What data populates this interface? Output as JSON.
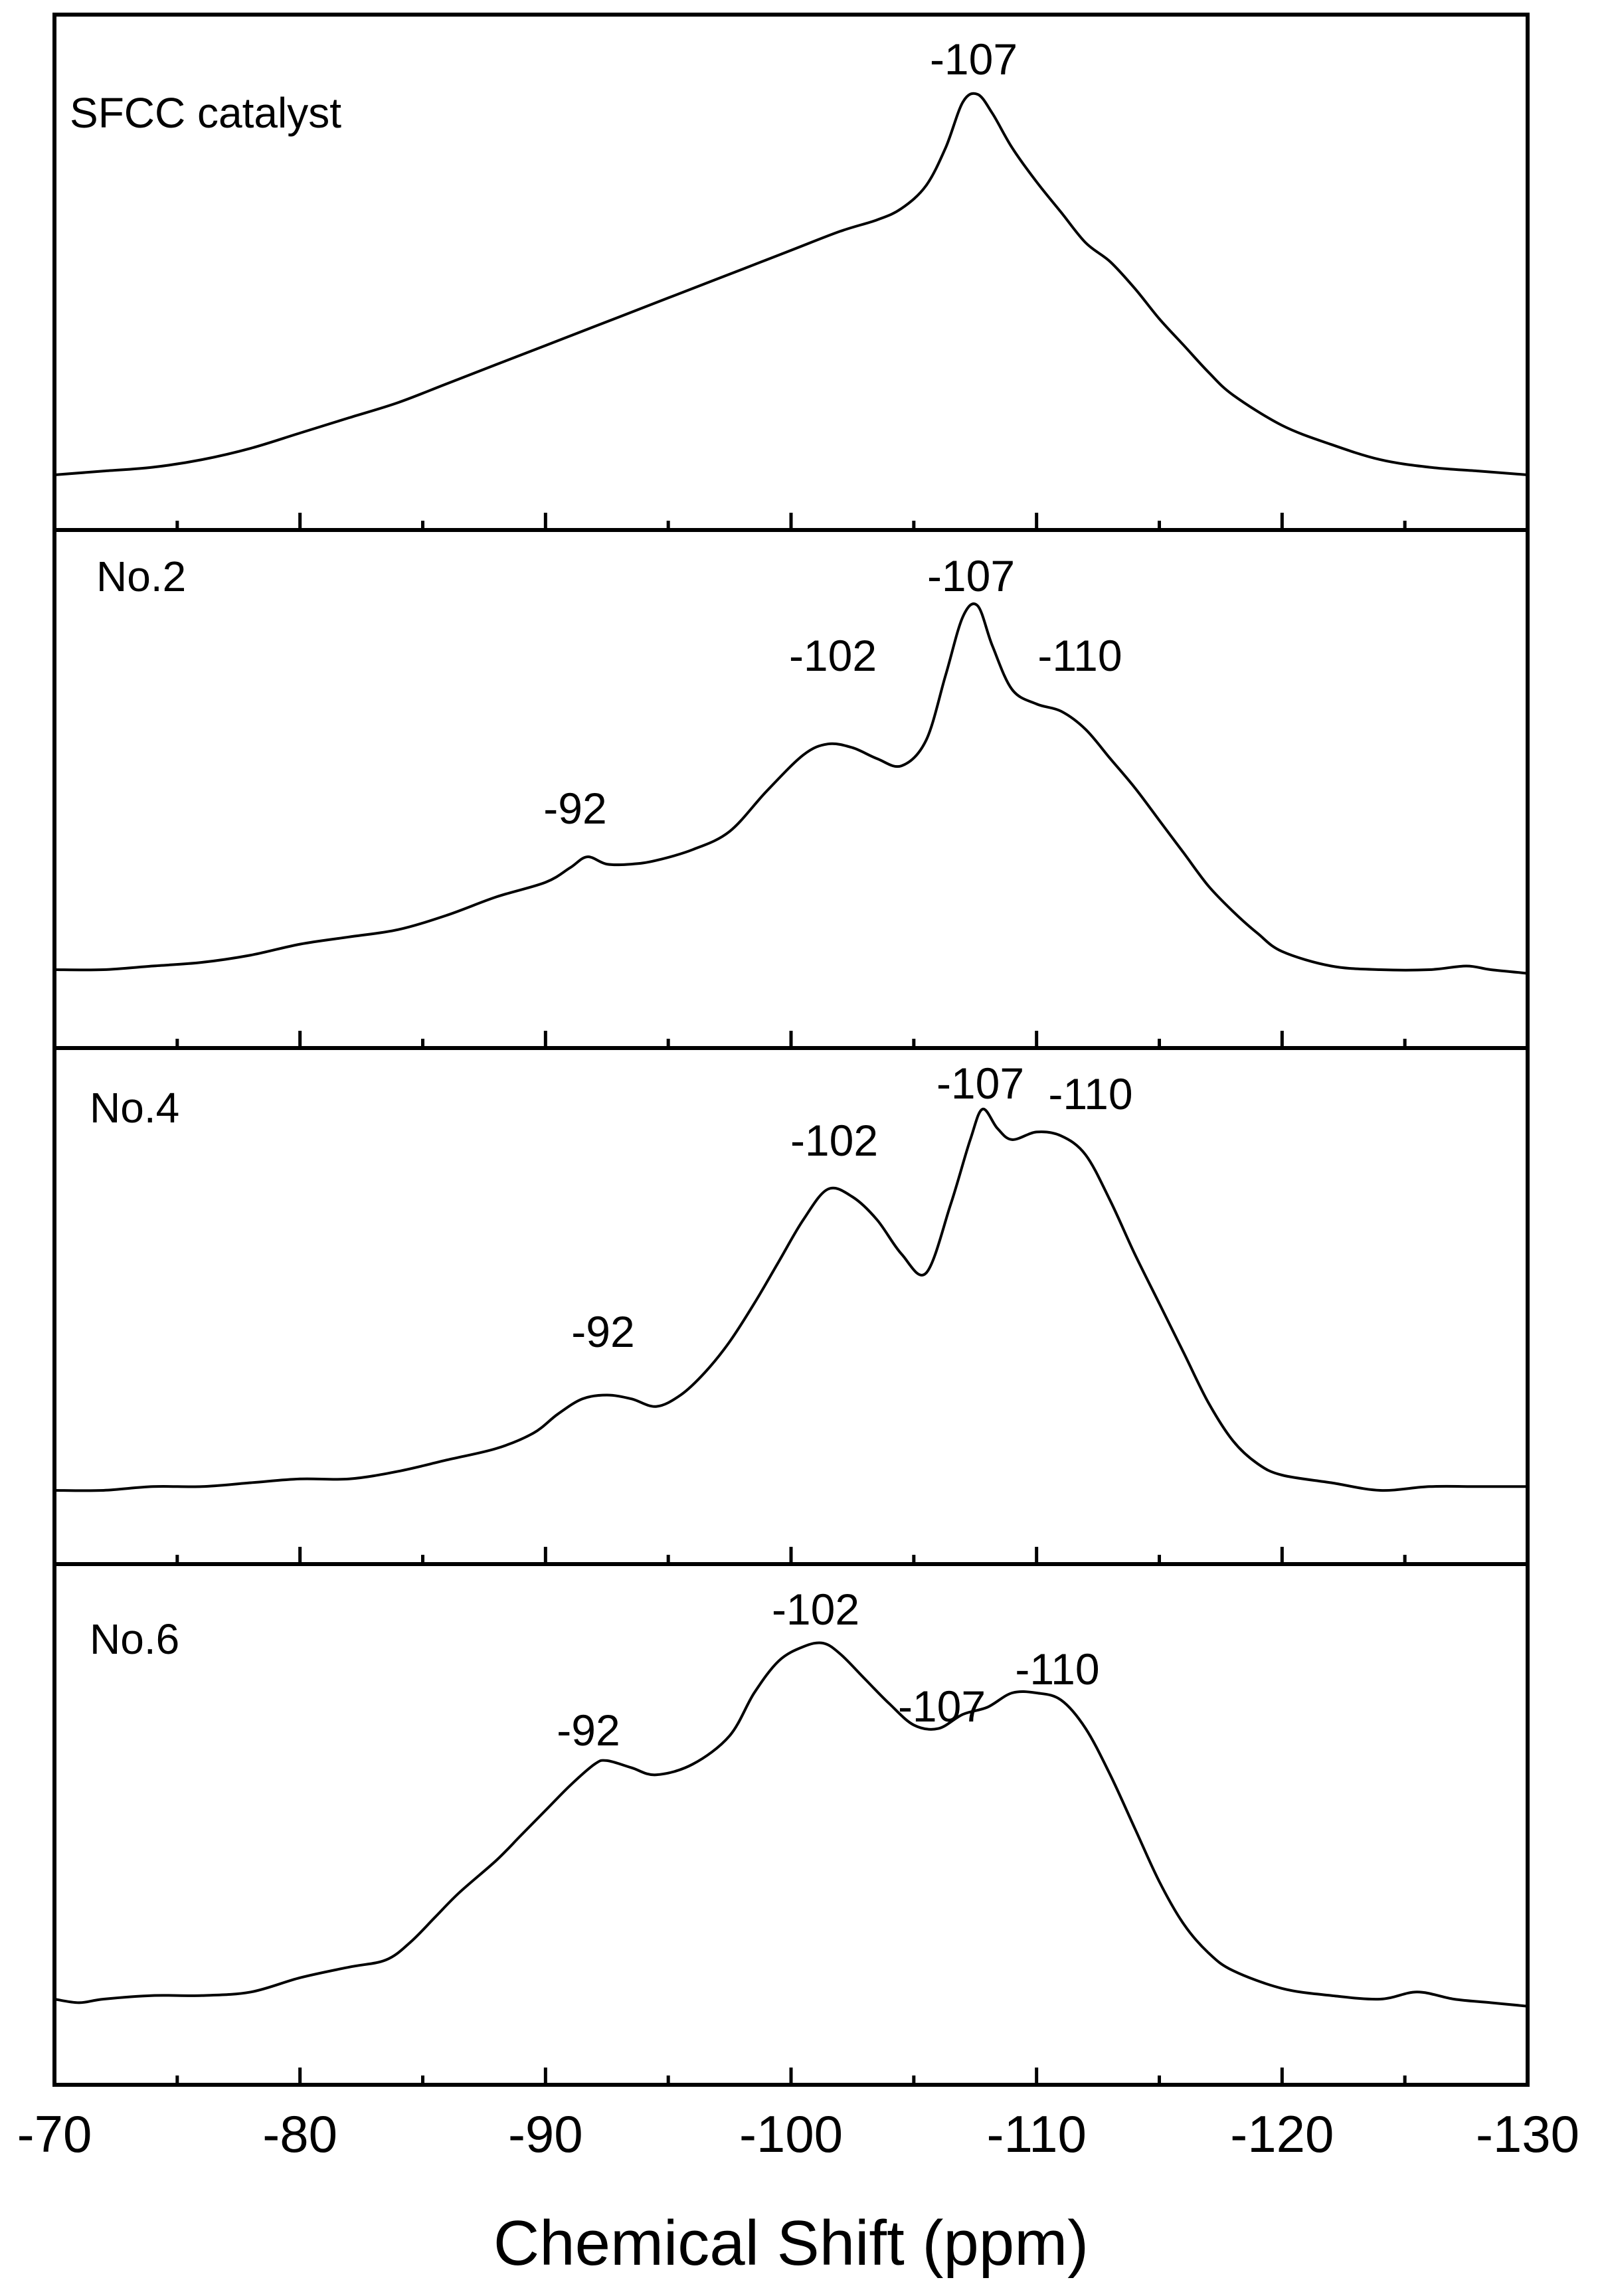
{
  "chart_data": {
    "type": "line",
    "xlabel": "Chemical Shift (ppm)",
    "ylabel": "",
    "xlim": [
      -70,
      -130
    ],
    "x_axis_reversed": true,
    "xticks": [
      -70,
      -80,
      -90,
      -100,
      -110,
      -120,
      -130
    ],
    "xtick_labels": [
      "-70",
      "-80",
      "-90",
      "-100",
      "-110",
      "-120",
      "-130"
    ],
    "minor_tick_step": 5,
    "grid": false,
    "legend": "none",
    "stacked_panels": true,
    "y_axis_shown": false,
    "line_color": "#000000",
    "series": [
      {
        "name": "SFCC catalyst",
        "x": [
          -70,
          -72,
          -74,
          -76,
          -78,
          -80,
          -82,
          -84,
          -86,
          -88,
          -90,
          -92,
          -94,
          -96,
          -98,
          -100,
          -102,
          -103.5,
          -104.5,
          -105.5,
          -106.3,
          -107,
          -107.6,
          -108.2,
          -109,
          -110,
          -111,
          -112,
          -113,
          -114,
          -115,
          -116,
          -117,
          -118,
          -120,
          -122,
          -124,
          -126,
          -128,
          -130
        ],
        "y": [
          0.0,
          0.01,
          0.02,
          0.04,
          0.07,
          0.11,
          0.15,
          0.19,
          0.24,
          0.29,
          0.34,
          0.39,
          0.44,
          0.49,
          0.54,
          0.59,
          0.64,
          0.67,
          0.7,
          0.76,
          0.86,
          0.98,
          1.0,
          0.95,
          0.86,
          0.77,
          0.69,
          0.61,
          0.56,
          0.49,
          0.41,
          0.34,
          0.27,
          0.21,
          0.13,
          0.08,
          0.04,
          0.02,
          0.01,
          0.0
        ]
      },
      {
        "name": "No.2",
        "x": [
          -70,
          -72,
          -74,
          -76,
          -78,
          -80,
          -82,
          -84,
          -86,
          -88,
          -90,
          -91,
          -91.7,
          -92.5,
          -93.5,
          -94.5,
          -96,
          -97.5,
          -99,
          -100.5,
          -101.5,
          -102.5,
          -103.5,
          -104.5,
          -105.5,
          -106.3,
          -107,
          -107.6,
          -108.2,
          -109,
          -110,
          -111,
          -112,
          -113,
          -114,
          -115,
          -116,
          -117,
          -118,
          -119,
          -120,
          -122,
          -124,
          -126,
          -127.5,
          -128.5,
          -130
        ],
        "y": [
          0.0,
          0.0,
          0.01,
          0.02,
          0.04,
          0.07,
          0.09,
          0.11,
          0.15,
          0.2,
          0.24,
          0.28,
          0.31,
          0.29,
          0.29,
          0.3,
          0.33,
          0.38,
          0.49,
          0.59,
          0.62,
          0.61,
          0.58,
          0.56,
          0.63,
          0.81,
          0.97,
          1.0,
          0.89,
          0.77,
          0.73,
          0.71,
          0.66,
          0.58,
          0.5,
          0.41,
          0.32,
          0.23,
          0.16,
          0.1,
          0.05,
          0.01,
          0.0,
          0.0,
          0.01,
          0.0,
          -0.01
        ]
      },
      {
        "name": "No.4",
        "x": [
          -70,
          -72,
          -74,
          -76,
          -78,
          -80,
          -82,
          -84,
          -86,
          -88,
          -89.5,
          -90.5,
          -91.5,
          -92.5,
          -93.5,
          -94.5,
          -95.5,
          -96.5,
          -97.5,
          -98.5,
          -99.5,
          -100.5,
          -101.5,
          -102.5,
          -103.5,
          -104.5,
          -105.5,
          -106.5,
          -107.3,
          -107.8,
          -108.4,
          -109,
          -110,
          -111,
          -112,
          -113,
          -114,
          -115,
          -116,
          -117,
          -118,
          -119,
          -120,
          -122,
          -124,
          -126,
          -128,
          -130
        ],
        "y": [
          0.0,
          0.0,
          0.01,
          0.01,
          0.02,
          0.03,
          0.03,
          0.05,
          0.08,
          0.11,
          0.15,
          0.2,
          0.24,
          0.25,
          0.24,
          0.22,
          0.25,
          0.31,
          0.39,
          0.49,
          0.6,
          0.71,
          0.79,
          0.77,
          0.71,
          0.62,
          0.57,
          0.75,
          0.92,
          1.0,
          0.95,
          0.92,
          0.94,
          0.93,
          0.88,
          0.76,
          0.62,
          0.49,
          0.36,
          0.23,
          0.13,
          0.07,
          0.04,
          0.02,
          0.0,
          0.01,
          0.01,
          0.01
        ]
      },
      {
        "name": "No.6",
        "x": [
          -70,
          -71,
          -72,
          -74,
          -76,
          -78,
          -80,
          -82,
          -83.5,
          -84.5,
          -85.5,
          -86.5,
          -88,
          -89,
          -90,
          -91,
          -92,
          -92.5,
          -93.5,
          -94.5,
          -96,
          -97.5,
          -98.5,
          -99.5,
          -100.5,
          -101.3,
          -102,
          -103,
          -104,
          -105,
          -106,
          -107,
          -108,
          -109,
          -110,
          -111,
          -112,
          -113,
          -114,
          -115,
          -116,
          -117,
          -118,
          -120,
          -122,
          -124,
          -125.5,
          -127,
          -128.5,
          -130
        ],
        "y": [
          0.0,
          -0.01,
          0.0,
          0.01,
          0.01,
          0.02,
          0.06,
          0.09,
          0.11,
          0.16,
          0.23,
          0.3,
          0.39,
          0.46,
          0.53,
          0.6,
          0.66,
          0.67,
          0.65,
          0.63,
          0.66,
          0.74,
          0.86,
          0.95,
          0.99,
          1.0,
          0.97,
          0.9,
          0.83,
          0.77,
          0.76,
          0.8,
          0.82,
          0.86,
          0.86,
          0.84,
          0.76,
          0.63,
          0.48,
          0.33,
          0.21,
          0.13,
          0.08,
          0.03,
          0.01,
          0.0,
          0.02,
          0.0,
          -0.01,
          -0.02
        ]
      }
    ],
    "annotations": [
      {
        "panel": "SFCC catalyst",
        "labels": [
          "-107"
        ]
      },
      {
        "panel": "No.2",
        "labels": [
          "-92",
          "-102",
          "-107",
          "-110"
        ]
      },
      {
        "panel": "No.4",
        "labels": [
          "-92",
          "-102",
          "-107",
          "-110"
        ]
      },
      {
        "panel": "No.6",
        "labels": [
          "-92",
          "-102",
          "-107",
          "-110"
        ]
      }
    ]
  }
}
